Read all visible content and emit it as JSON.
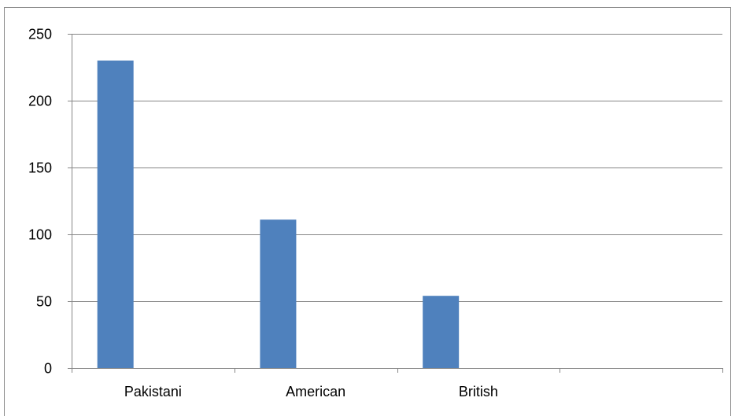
{
  "chart_data": {
    "type": "bar",
    "categories": [
      "Pakistani",
      "American",
      "British",
      ""
    ],
    "series": [
      {
        "values": [
          230,
          111,
          54,
          null
        ]
      }
    ],
    "title": "",
    "xlabel": "",
    "ylabel": "",
    "ylim": [
      0,
      250
    ],
    "yticks": [
      0,
      50,
      100,
      150,
      200,
      250
    ],
    "grid": "horizontal",
    "legend": "none",
    "bar_color": "#4f81bd",
    "grid_color": "#868686"
  }
}
